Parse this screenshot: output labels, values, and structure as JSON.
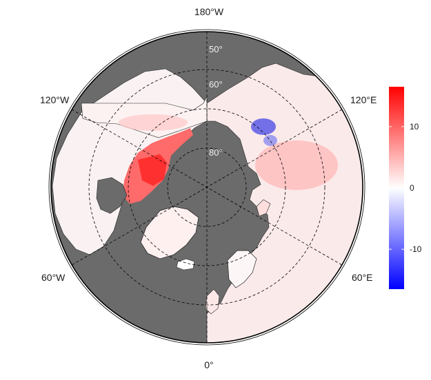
{
  "map": {
    "projection": "north-polar-stereographic",
    "ocean_color": "#6b6b6b",
    "graticule_style": "dashed",
    "longitude_labels": [
      {
        "id": "lon-180",
        "text": "180°W"
      },
      {
        "id": "lon-120e",
        "text": "120°E"
      },
      {
        "id": "lon-60e",
        "text": "60°E"
      },
      {
        "id": "lon-0",
        "text": "0°"
      },
      {
        "id": "lon-60w",
        "text": "60°W"
      },
      {
        "id": "lon-120w",
        "text": "120°W"
      }
    ],
    "latitude_labels": [
      {
        "id": "lat-50",
        "text": "50°"
      },
      {
        "id": "lat-60",
        "text": "60°"
      },
      {
        "id": "lat-80",
        "text": "80°"
      }
    ]
  },
  "colorbar": {
    "ticks": [
      {
        "value": 10,
        "label": "10"
      },
      {
        "value": 0,
        "label": "0"
      },
      {
        "value": -10,
        "label": "-10"
      }
    ],
    "range": [
      -16.5,
      16.5
    ],
    "colors": {
      "low": "#0000ff",
      "mid": "#ffffff",
      "high": "#ff0000"
    }
  }
}
